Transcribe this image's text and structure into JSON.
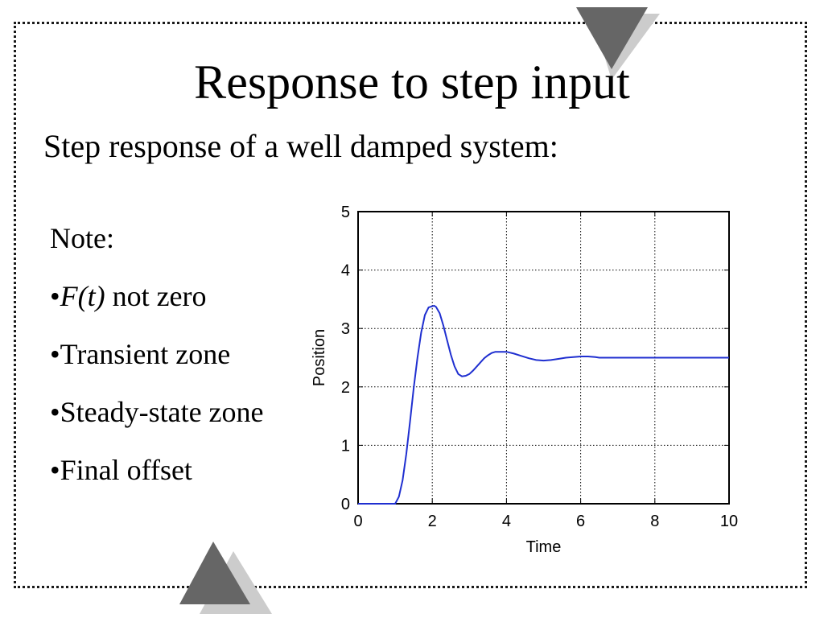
{
  "slide": {
    "title": "Response to step input",
    "subtitle": "Step response of a well damped system:"
  },
  "notes": {
    "heading": "Note:",
    "items": [
      {
        "bullet": "•",
        "italic": "F(t)",
        "text": " not zero"
      },
      {
        "bullet": "•",
        "text": "Transient zone"
      },
      {
        "bullet": "•",
        "text": "Steady-state zone"
      },
      {
        "bullet": "•",
        "text": "Final offset"
      }
    ]
  },
  "colors": {
    "line": "#1f2fd0",
    "deco_dark": "#666666",
    "deco_light": "#cccccc"
  },
  "chart_data": {
    "type": "line",
    "title": "",
    "xlabel": "Time",
    "ylabel": "Position",
    "xlim": [
      0,
      10
    ],
    "ylim": [
      0,
      5
    ],
    "xticks": [
      0,
      2,
      4,
      6,
      8,
      10
    ],
    "yticks": [
      0,
      1,
      2,
      3,
      4,
      5
    ],
    "grid": true,
    "series": [
      {
        "x": [
          0,
          1.0,
          1.1,
          1.2,
          1.3,
          1.4,
          1.5,
          1.6,
          1.7,
          1.8,
          1.9,
          2.0,
          2.05,
          2.1,
          2.2,
          2.3,
          2.4,
          2.5,
          2.6,
          2.7,
          2.8,
          2.9,
          3.0,
          3.1,
          3.2,
          3.3,
          3.4,
          3.5,
          3.6,
          3.7,
          3.8,
          3.9,
          4.0,
          4.2,
          4.4,
          4.6,
          4.8,
          5.0,
          5.2,
          5.4,
          5.6,
          5.8,
          6.0,
          6.2,
          6.4,
          6.5,
          7.0,
          8.0,
          9.0,
          10.0
        ],
        "y": [
          0,
          0,
          0.12,
          0.4,
          0.85,
          1.4,
          1.98,
          2.5,
          2.93,
          3.23,
          3.36,
          3.38,
          3.39,
          3.37,
          3.26,
          3.05,
          2.8,
          2.55,
          2.35,
          2.22,
          2.18,
          2.19,
          2.22,
          2.28,
          2.35,
          2.42,
          2.49,
          2.54,
          2.58,
          2.6,
          2.6,
          2.6,
          2.6,
          2.57,
          2.53,
          2.49,
          2.46,
          2.45,
          2.46,
          2.48,
          2.5,
          2.51,
          2.52,
          2.52,
          2.51,
          2.5,
          2.5,
          2.5,
          2.5,
          2.5
        ]
      }
    ]
  }
}
